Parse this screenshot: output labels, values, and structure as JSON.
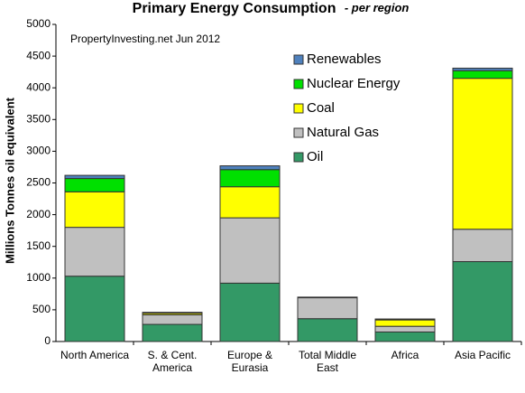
{
  "chart_data": {
    "type": "stacked_bar",
    "title": "Primary Energy Consumption",
    "subtitle": "- per region",
    "annotation": "PropertyInvesting.net Jun 2012",
    "y_label": "Millions Tonnes oil equivalent",
    "categories": [
      "North America",
      "S. & Cent. America",
      "Europe & Eurasia",
      "Total Middle East",
      "Africa",
      "Asia Pacific"
    ],
    "series": [
      {
        "name": "Oil",
        "color": "#339966",
        "values": [
          1030,
          270,
          920,
          360,
          150,
          1260
        ]
      },
      {
        "name": "Natural Gas",
        "color": "#c0c0c0",
        "values": [
          770,
          150,
          1030,
          330,
          90,
          510
        ]
      },
      {
        "name": "Coal",
        "color": "#ffff00",
        "values": [
          560,
          25,
          490,
          10,
          100,
          2380
        ]
      },
      {
        "name": "Nuclear Energy",
        "color": "#00e000",
        "values": [
          210,
          5,
          270,
          0,
          10,
          120
        ]
      },
      {
        "name": "Renewables",
        "color": "#4f81bd",
        "values": [
          50,
          10,
          60,
          0,
          5,
          40
        ]
      }
    ],
    "ylim": [
      0,
      5000
    ],
    "yticks": [
      0,
      500,
      1000,
      1500,
      2000,
      2500,
      3000,
      3500,
      4000,
      4500,
      5000
    ],
    "grid": false,
    "legend": "top-right"
  }
}
